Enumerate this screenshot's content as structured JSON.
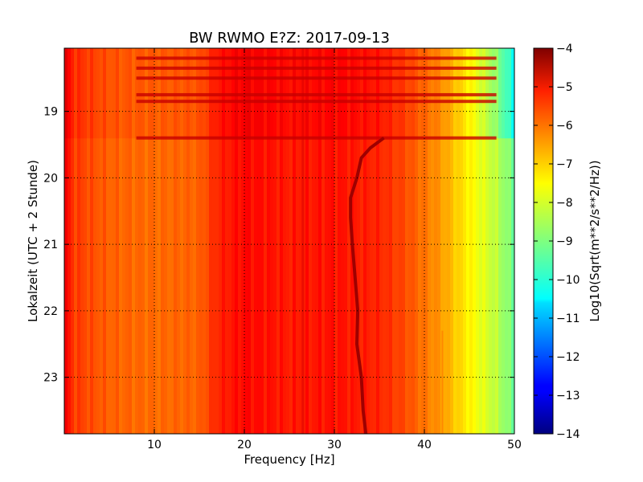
{
  "chart_data": {
    "type": "heatmap",
    "title": "BW RWMO E?Z: 2017-09-13",
    "xlabel": "Frequency [Hz]",
    "ylabel": "Lokalzeit (UTC + 2 Stunde)",
    "colorbar_label": "Log10(Sqrt(m**2/s**2/Hz))",
    "xlim": [
      0,
      50
    ],
    "ylim_hours": [
      18.05,
      23.85
    ],
    "x_ticks": [
      10,
      20,
      30,
      40,
      50
    ],
    "y_ticks": [
      19,
      20,
      21,
      22,
      23
    ],
    "clim": [
      -14,
      -4
    ],
    "colorbar_ticks": [
      -4,
      -5,
      -6,
      -7,
      -8,
      -9,
      -10,
      -11,
      -12,
      -13,
      -14
    ],
    "colormap": "jet",
    "grid": true,
    "grid_style": "dotted",
    "spectrum_profile": [
      {
        "freq": 0,
        "level": -5.1
      },
      {
        "freq": 1,
        "level": -5.8
      },
      {
        "freq": 5,
        "level": -6.2
      },
      {
        "freq": 10,
        "level": -6.3
      },
      {
        "freq": 15,
        "level": -6.2
      },
      {
        "freq": 17,
        "level": -5.6
      },
      {
        "freq": 20,
        "level": -5.3
      },
      {
        "freq": 25,
        "level": -5.5
      },
      {
        "freq": 30,
        "level": -5.4
      },
      {
        "freq": 35,
        "level": -5.6
      },
      {
        "freq": 38,
        "level": -6.0
      },
      {
        "freq": 40,
        "level": -6.4
      },
      {
        "freq": 42,
        "level": -6.8
      },
      {
        "freq": 44,
        "level": -7.4
      },
      {
        "freq": 46,
        "level": -7.9
      },
      {
        "freq": 48,
        "level": -8.4
      },
      {
        "freq": 50,
        "level": -9.2
      }
    ],
    "noisy_period_hours": [
      18.05,
      19.4
    ],
    "noisy_period_high_freq_level": -10.3,
    "strong_horizontal_bands_hours": [
      18.2,
      18.35,
      18.5,
      18.75,
      18.85,
      19.4
    ],
    "spectral_line_track": [
      {
        "hour": 19.4,
        "freq": 35.5
      },
      {
        "hour": 19.55,
        "freq": 34.0
      },
      {
        "hour": 19.7,
        "freq": 33.0
      },
      {
        "hour": 20.0,
        "freq": 32.5
      },
      {
        "hour": 20.3,
        "freq": 31.8
      },
      {
        "hour": 20.6,
        "freq": 31.8
      },
      {
        "hour": 21.0,
        "freq": 32.0
      },
      {
        "hour": 21.5,
        "freq": 32.3
      },
      {
        "hour": 22.0,
        "freq": 32.6
      },
      {
        "hour": 22.5,
        "freq": 32.5
      },
      {
        "hour": 23.0,
        "freq": 33.0
      },
      {
        "hour": 23.5,
        "freq": 33.2
      },
      {
        "hour": 23.85,
        "freq": 33.5
      }
    ],
    "intermittent_line_hz": 26.5,
    "weak_line_hz": 42.0
  }
}
